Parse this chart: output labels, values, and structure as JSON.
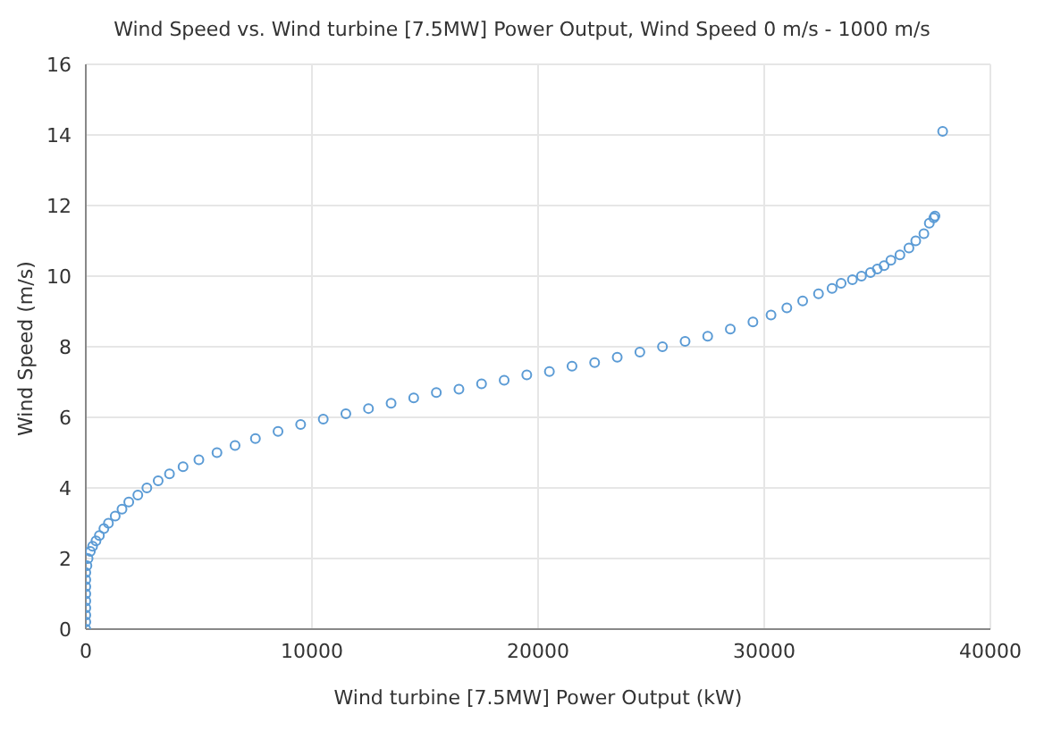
{
  "chart_data": {
    "type": "scatter",
    "title": "Wind Speed vs. Wind turbine [7.5MW] Power Output, Wind Speed 0 m/s - 1000 m/s",
    "xlabel": "Wind turbine [7.5MW] Power Output (kW)",
    "ylabel": "Wind Speed (m/s)",
    "x": [
      0,
      0,
      0,
      0,
      0,
      0,
      0,
      0,
      0,
      50,
      100,
      200,
      300,
      450,
      600,
      800,
      1000,
      1300,
      1600,
      1900,
      2300,
      2700,
      3200,
      3700,
      4300,
      5000,
      5800,
      6600,
      7500,
      8500,
      9500,
      10500,
      11500,
      12500,
      13500,
      14500,
      15500,
      16500,
      17500,
      18500,
      19500,
      20500,
      21500,
      22500,
      23500,
      24500,
      25500,
      26500,
      27500,
      28500,
      29500,
      30300,
      31000,
      31700,
      32400,
      33000,
      33400,
      33900,
      34300,
      34700,
      35000,
      35300,
      35600,
      36000,
      36400,
      36700,
      37060,
      37300,
      37500,
      37550,
      37890
    ],
    "series": [
      {
        "color": "#5b9bd5",
        "values": [
          0,
          0.2,
          0.4,
          0.6,
          0.8,
          1.0,
          1.2,
          1.4,
          1.6,
          1.8,
          2.0,
          2.2,
          2.35,
          2.5,
          2.65,
          2.85,
          3.0,
          3.2,
          3.4,
          3.6,
          3.8,
          4.0,
          4.2,
          4.4,
          4.6,
          4.8,
          5.0,
          5.2,
          5.4,
          5.6,
          5.8,
          5.95,
          6.1,
          6.25,
          6.4,
          6.55,
          6.7,
          6.8,
          6.95,
          7.05,
          7.2,
          7.3,
          7.45,
          7.55,
          7.7,
          7.85,
          8.0,
          8.15,
          8.3,
          8.5,
          8.7,
          8.9,
          9.1,
          9.3,
          9.5,
          9.65,
          9.8,
          9.9,
          10.0,
          10.1,
          10.2,
          10.3,
          10.45,
          10.6,
          10.8,
          11.0,
          11.2,
          11.5,
          11.65,
          11.7,
          14.1
        ]
      }
    ],
    "xlim": [
      0,
      40000
    ],
    "xticks": [
      0,
      10000,
      20000,
      30000,
      40000
    ],
    "ylim": [
      0,
      16
    ],
    "yticks": [
      0,
      2,
      4,
      6,
      8,
      10,
      12,
      14,
      16
    ],
    "grid": true,
    "marker": "circle"
  }
}
